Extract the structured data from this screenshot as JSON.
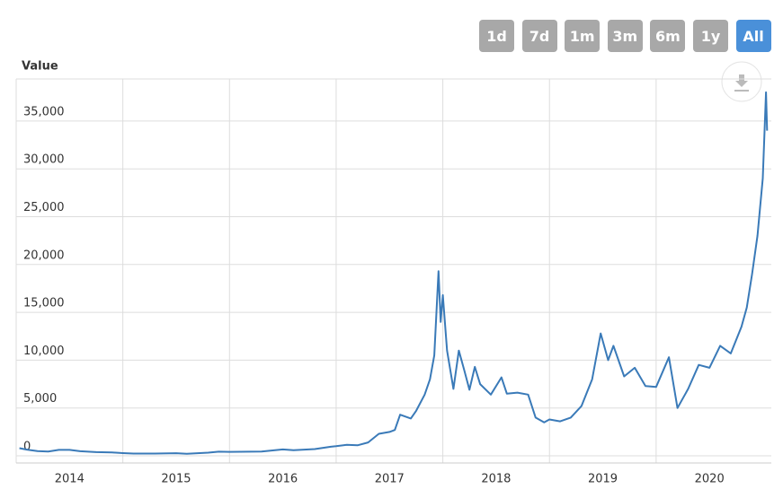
{
  "range_buttons": [
    "1d",
    "7d",
    "1m",
    "3m",
    "6m",
    "1y",
    "All"
  ],
  "active_range": "All",
  "chart_data": {
    "type": "line",
    "y_label": "Value",
    "x": [
      2014.03,
      2014.1,
      2014.2,
      2014.3,
      2014.4,
      2014.5,
      2014.6,
      2014.75,
      2014.9,
      2015.0,
      2015.1,
      2015.3,
      2015.5,
      2015.6,
      2015.8,
      2015.9,
      2016.0,
      2016.3,
      2016.5,
      2016.6,
      2016.8,
      2016.95,
      2017.0,
      2017.1,
      2017.2,
      2017.3,
      2017.4,
      2017.5,
      2017.55,
      2017.6,
      2017.7,
      2017.75,
      2017.83,
      2017.88,
      2017.92,
      2017.96,
      2017.98,
      2018.0,
      2018.04,
      2018.1,
      2018.15,
      2018.2,
      2018.25,
      2018.3,
      2018.35,
      2018.45,
      2018.55,
      2018.6,
      2018.7,
      2018.8,
      2018.87,
      2018.95,
      2019.0,
      2019.1,
      2019.2,
      2019.3,
      2019.4,
      2019.48,
      2019.55,
      2019.6,
      2019.7,
      2019.8,
      2019.9,
      2020.0,
      2020.12,
      2020.2,
      2020.3,
      2020.4,
      2020.5,
      2020.6,
      2020.7,
      2020.8,
      2020.85,
      2020.9,
      2020.95,
      2021.0,
      2021.03,
      2021.04
    ],
    "series": [
      {
        "name": "Value",
        "color": "#3a7ab8",
        "values": [
          800,
          650,
          500,
          450,
          620,
          620,
          480,
          380,
          350,
          280,
          230,
          230,
          270,
          220,
          330,
          430,
          410,
          450,
          670,
          580,
          700,
          950,
          1000,
          1150,
          1100,
          1400,
          2300,
          2500,
          2700,
          4300,
          3900,
          4700,
          6400,
          8000,
          10500,
          19300,
          14000,
          16800,
          11000,
          7000,
          11000,
          9000,
          6900,
          9300,
          7500,
          6400,
          8200,
          6500,
          6600,
          6400,
          4000,
          3500,
          3800,
          3600,
          4000,
          5200,
          8000,
          12800,
          10000,
          11500,
          8300,
          9200,
          7300,
          7200,
          10300,
          5000,
          7000,
          9500,
          9200,
          11500,
          10700,
          13500,
          15500,
          19000,
          23000,
          29000,
          38000,
          34000
        ]
      }
    ],
    "xlim": [
      2014,
      2021.08
    ],
    "xticks": [
      2014,
      2015,
      2016,
      2017,
      2018,
      2019,
      2020
    ],
    "ylim": [
      0,
      39400
    ],
    "yticks": [
      0,
      {
        "value": 5000,
        "label": "5,000"
      },
      {
        "value": 10000,
        "label": "10,000"
      },
      {
        "value": 15000,
        "label": "15,000"
      },
      {
        "value": 20000,
        "label": "20,000"
      },
      {
        "value": 25000,
        "label": "25,000"
      },
      {
        "value": 30000,
        "label": "30,000"
      },
      {
        "value": 35000,
        "label": "35,000"
      }
    ],
    "grid": true
  }
}
